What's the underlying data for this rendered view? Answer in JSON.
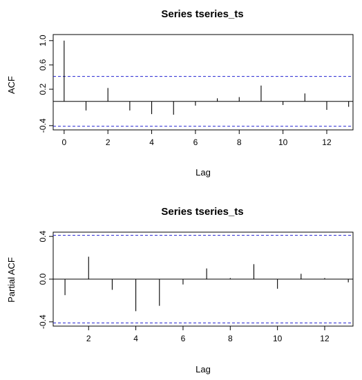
{
  "chart_data": [
    {
      "type": "bar",
      "subtype": "acf",
      "title": "Series  tseries_ts",
      "xlabel": "Lag",
      "ylabel": "ACF",
      "xlim": [
        -0.5,
        13.2
      ],
      "ylim": [
        -0.47,
        1.1
      ],
      "xticks": [
        "0",
        "2",
        "4",
        "6",
        "8",
        "10",
        "12"
      ],
      "yticks": [
        "-0.4",
        "0.2",
        "0.6",
        "1.0"
      ],
      "conf_limit": 0.41,
      "conf_color": "#2020d0",
      "x": [
        0,
        1,
        2,
        3,
        4,
        5,
        6,
        7,
        8,
        9,
        10,
        11,
        12,
        13
      ],
      "values": [
        1.0,
        -0.15,
        0.22,
        -0.15,
        -0.21,
        -0.22,
        -0.07,
        0.05,
        0.07,
        0.26,
        -0.06,
        0.13,
        -0.14,
        -0.09
      ],
      "grid": false
    },
    {
      "type": "bar",
      "subtype": "pacf",
      "title": "Series  tseries_ts",
      "xlabel": "Lag",
      "ylabel": "Partial ACF",
      "xlim": [
        0.5,
        13.2
      ],
      "ylim": [
        -0.44,
        0.44
      ],
      "xticks": [
        "2",
        "4",
        "6",
        "8",
        "10",
        "12"
      ],
      "yticks": [
        "-0.4",
        "0.0",
        "0.4"
      ],
      "conf_limit": 0.41,
      "conf_color": "#2020d0",
      "x": [
        1,
        2,
        3,
        4,
        5,
        6,
        7,
        8,
        9,
        10,
        11,
        12,
        13
      ],
      "values": [
        -0.15,
        0.21,
        -0.1,
        -0.3,
        -0.25,
        -0.05,
        0.1,
        0.01,
        0.14,
        -0.09,
        0.05,
        0.01,
        -0.03
      ],
      "grid": false
    }
  ]
}
